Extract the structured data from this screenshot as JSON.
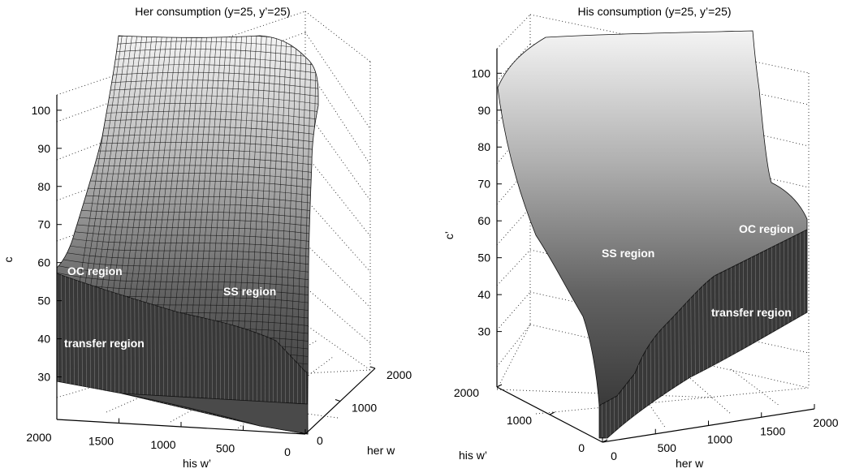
{
  "chart_data": [
    {
      "type": "surface",
      "title": "Her consumption (y=25, y’=25)",
      "xlabel": "his w’",
      "ylabel": "her w",
      "zlabel": "c",
      "x_ticks": [
        "2000",
        "1500",
        "1000",
        "500",
        "0"
      ],
      "y_ticks": [
        "0",
        "1000",
        "2000"
      ],
      "z_ticks": [
        "30",
        "40",
        "50",
        "60",
        "70",
        "80",
        "90",
        "100"
      ],
      "xlim": [
        0,
        2000
      ],
      "ylim": [
        0,
        2000
      ],
      "zlim": [
        25,
        107
      ],
      "grid": true,
      "annotations": [
        "OC region",
        "SS region",
        "transfer region"
      ],
      "surface_edges": {
        "her_w_max": {
          "his_w": [
            2000,
            1500,
            1000,
            500,
            0
          ],
          "c": [
            104,
            104,
            105,
            105,
            94
          ]
        },
        "her_w_0": {
          "his_w": [
            2000,
            1500,
            1000,
            500,
            0
          ],
          "c": [
            43,
            39,
            34,
            30,
            25
          ]
        },
        "his_w_0": {
          "her_w": [
            0,
            500,
            1000,
            1500,
            2000
          ],
          "c": [
            25,
            40,
            60,
            80,
            94
          ]
        },
        "his_w_2000": {
          "her_w": [
            0,
            100,
            200,
            300,
            1000,
            2000
          ],
          "c": [
            43,
            62,
            67,
            70,
            90,
            104
          ]
        }
      }
    },
    {
      "type": "surface",
      "title": "His consumption (y=25, y’=25)",
      "xlabel": "her w",
      "ylabel": "his w’",
      "zlabel": "c’",
      "x_ticks": [
        "0",
        "500",
        "1000",
        "1500",
        "2000"
      ],
      "y_ticks": [
        "0",
        "1000",
        "2000"
      ],
      "z_ticks": [
        "30",
        "40",
        "50",
        "60",
        "70",
        "80",
        "90",
        "100"
      ],
      "xlim": [
        0,
        2000
      ],
      "ylim": [
        0,
        2000
      ],
      "zlim": [
        22,
        106
      ],
      "grid": true,
      "annotations": [
        "OC region",
        "SS region",
        "transfer region"
      ],
      "surface_edges": {
        "his_w_max": {
          "her_w": [
            0,
            500,
            1000,
            1500,
            2000
          ],
          "c": [
            94,
            104,
            105,
            106,
            105
          ]
        },
        "his_w_0": {
          "her_w": [
            0,
            500,
            1000,
            1500,
            2000
          ],
          "c": [
            22,
            27,
            32,
            38,
            44
          ]
        },
        "her_w_0": {
          "his_w": [
            0,
            500,
            1000,
            1500,
            2000
          ],
          "c": [
            22,
            40,
            62,
            82,
            94
          ]
        },
        "her_w_2000": {
          "his_w": [
            0,
            100,
            200,
            300,
            1000,
            2000
          ],
          "c": [
            44,
            62,
            66,
            67,
            80,
            105
          ]
        }
      }
    }
  ]
}
